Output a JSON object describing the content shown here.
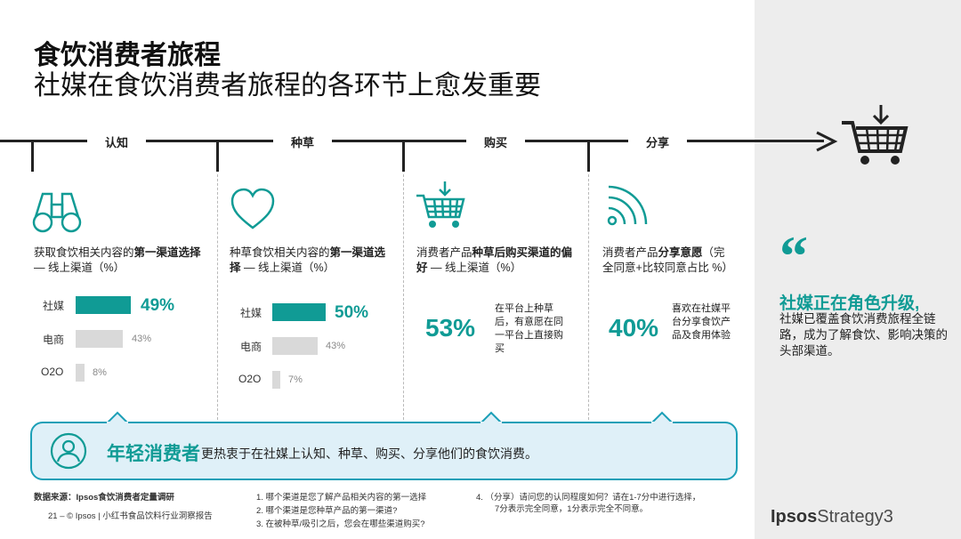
{
  "title": "食饮消费者旅程",
  "subtitle": "社媒在食饮消费者旅程的各环节上愈发重要",
  "stages": [
    "认知",
    "种草",
    "购买",
    "分享"
  ],
  "colors": {
    "accent": "#109b95",
    "bar_main": "#109b95",
    "bar_other": "#d9d9d9",
    "banner_bg": "#dff0f8",
    "banner_border": "#1b9fb7"
  },
  "col1": {
    "icon": "binoculars-icon",
    "desc_a": "获取食饮相关内容的",
    "desc_b": "第一渠道选择",
    "desc_c": " — 线上渠道（%）",
    "bars": [
      {
        "label": "社媒",
        "value": 49,
        "text": "49%"
      },
      {
        "label": "电商",
        "value": 43,
        "text": "43%"
      },
      {
        "label": "O2O",
        "value": 8,
        "text": "8%"
      }
    ]
  },
  "col2": {
    "icon": "heart-icon",
    "desc_a": "种草食饮相关内容的",
    "desc_b": "第一渠道选择",
    "desc_c": " — 线上渠道（%）",
    "bars": [
      {
        "label": "社媒",
        "value": 50,
        "text": "50%"
      },
      {
        "label": "电商",
        "value": 43,
        "text": "43%"
      },
      {
        "label": "O2O",
        "value": 7,
        "text": "7%"
      }
    ]
  },
  "col3": {
    "icon": "shopping-cart-icon",
    "desc_a": "消费者产品",
    "desc_b": "种草后购买渠道的偏好",
    "desc_c": " — 线上渠道（%）",
    "stat": "53%",
    "note": "在平台上种草后，有意愿在同一平台上直接购买"
  },
  "col4": {
    "icon": "share-signal-icon",
    "desc_a": "消费者产品",
    "desc_b": "分享意愿",
    "desc_c": "（完全同意+比较同意占比 %）",
    "stat": "40%",
    "note": "喜欢在社媒平台分享食饮产品及食用体验"
  },
  "banner": {
    "icon": "user-icon",
    "title": "年轻消费者",
    "body": "更热衷于在社媒上认知、种草、购买、分享他们的食饮消费。"
  },
  "side": {
    "quote": "“",
    "heading": "社媒正在角色升级,",
    "body": "社媒已覆盖食饮消费旅程全链路，成为了解食饮、影响决策的头部渠道。"
  },
  "footer": {
    "source": "数据来源：Ipsos食饮消费者定量调研",
    "page": "21 –  © Ipsos | 小红书食品饮料行业洞察报告",
    "q1": "1.   哪个渠道是您了解产品相关内容的第一选择",
    "q2": "2.   哪个渠道是您种草产品的第一渠道?",
    "q3": "3.   在被种草/吸引之后，您会在哪些渠道购买?",
    "q4a": "4.   （分享）请问您的认同程度如何？请在1-7分中进行选择，",
    "q4b": "7分表示完全同意，1分表示完全不同意。"
  },
  "logo": {
    "brand": "Ipsos",
    "suffix": "Strategy3"
  }
}
